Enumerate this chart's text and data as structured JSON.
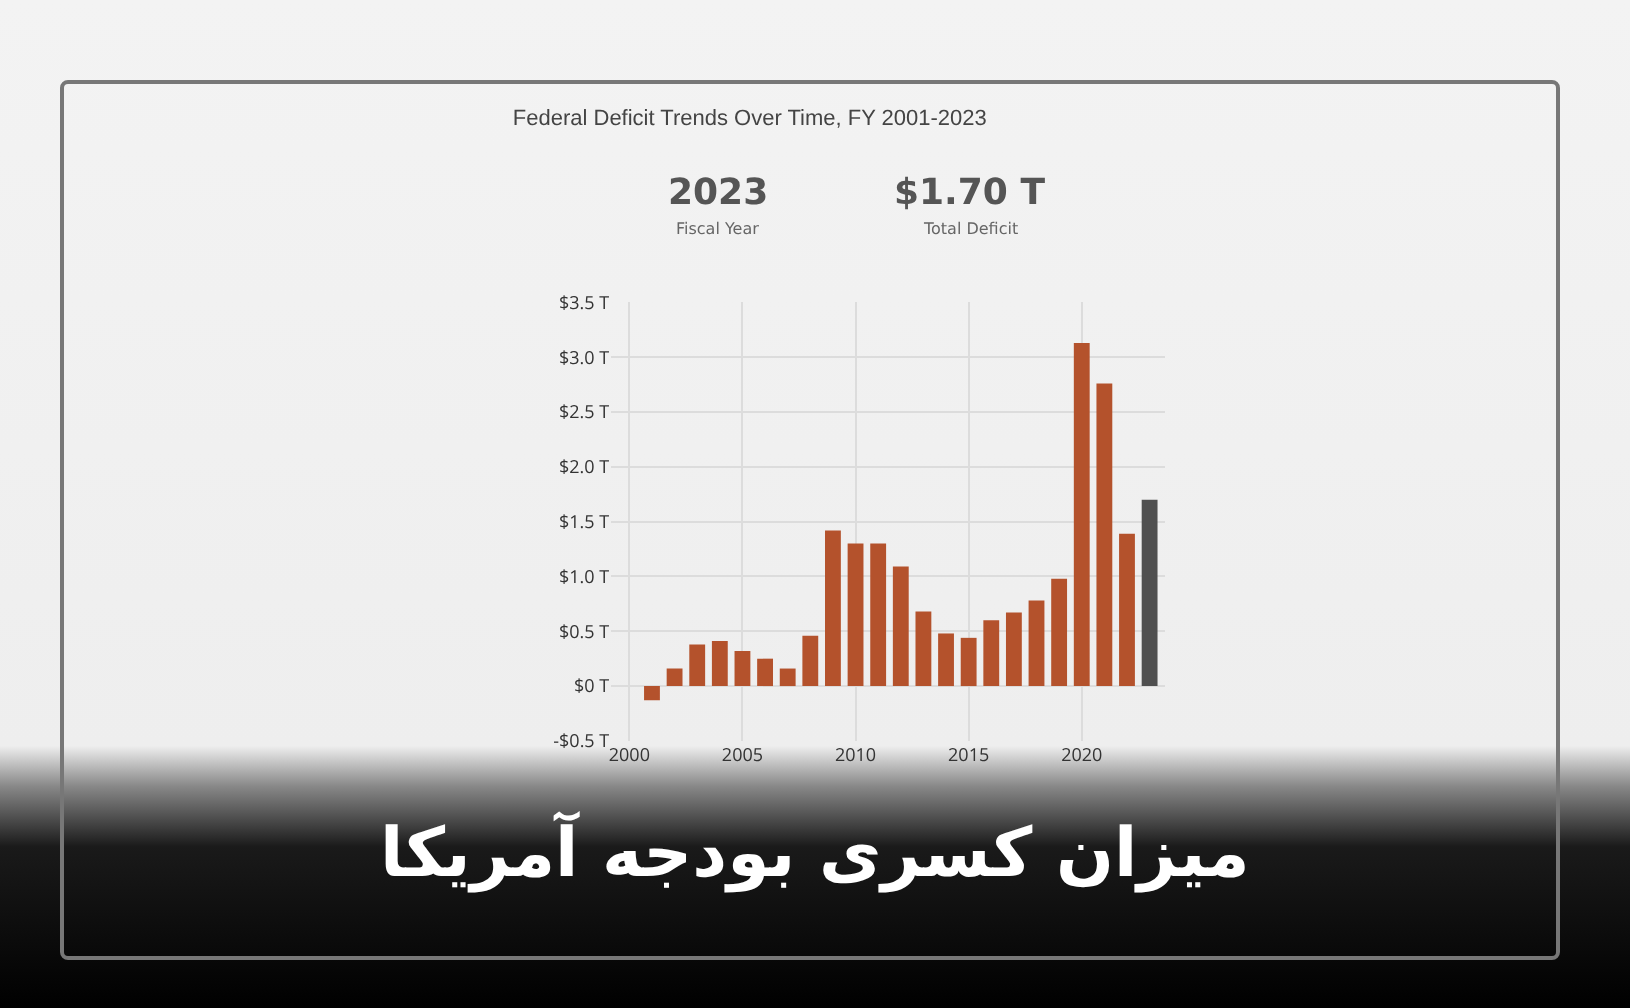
{
  "chart_data": {
    "type": "bar",
    "title": "Federal Deficit Trends Over Time, FY 2001-2023",
    "x": [
      2001,
      2002,
      2003,
      2004,
      2005,
      2006,
      2007,
      2008,
      2009,
      2010,
      2011,
      2012,
      2013,
      2014,
      2015,
      2016,
      2017,
      2018,
      2019,
      2020,
      2021,
      2022,
      2023
    ],
    "values": [
      -0.13,
      0.16,
      0.38,
      0.41,
      0.32,
      0.25,
      0.16,
      0.46,
      1.42,
      1.3,
      1.3,
      1.09,
      0.68,
      0.48,
      0.44,
      0.6,
      0.67,
      0.78,
      0.98,
      3.13,
      2.76,
      1.39,
      1.7
    ],
    "colors": [
      "#b4522c",
      "#b4522c",
      "#b4522c",
      "#b4522c",
      "#b4522c",
      "#b4522c",
      "#b4522c",
      "#b4522c",
      "#b4522c",
      "#b4522c",
      "#b4522c",
      "#b4522c",
      "#b4522c",
      "#b4522c",
      "#b4522c",
      "#b4522c",
      "#b4522c",
      "#b4522c",
      "#b4522c",
      "#b4522c",
      "#b4522c",
      "#b4522c",
      "#505050"
    ],
    "xlim": [
      1999.2,
      2023.7
    ],
    "xticks": [
      2000,
      2005,
      2010,
      2015,
      2020
    ],
    "ylim": [
      -0.5,
      3.5
    ],
    "yticks": [
      {
        "value": -0.5,
        "label": "-$0.5 T"
      },
      {
        "value": 0,
        "label": "$0 T"
      },
      {
        "value": 0.5,
        "label": "$0.5 T"
      },
      {
        "value": 1,
        "label": "$1.0 T"
      },
      {
        "value": 1.5,
        "label": "$1.5 T"
      },
      {
        "value": 2,
        "label": "$2.0 T"
      },
      {
        "value": 2.5,
        "label": "$2.5 T"
      },
      {
        "value": 3,
        "label": "$3.0 T"
      },
      {
        "value": 3.5,
        "label": "$3.5 T"
      }
    ],
    "grid": true,
    "annotations": [
      "2023",
      "Fiscal Year",
      "$1.70 T",
      "Total Deficit",
      "میزان کسری بودجه آمریکا"
    ]
  }
}
